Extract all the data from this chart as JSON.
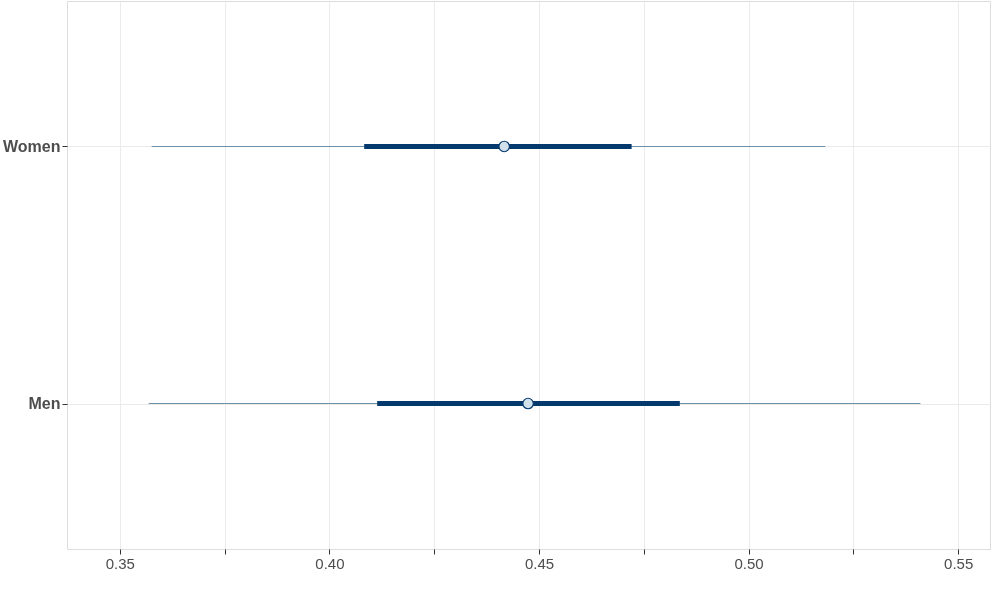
{
  "chart_data": {
    "type": "box",
    "orientation": "horizontal",
    "categories": [
      "Women",
      "Men"
    ],
    "series": [
      {
        "color": "#03396c",
        "boxes": [
          {
            "low": 0.3576,
            "q1": 0.4083,
            "median": 0.4417,
            "q3": 0.4721,
            "high": 0.5183
          },
          {
            "low": 0.3569,
            "q1": 0.4114,
            "median": 0.4474,
            "q3": 0.4836,
            "high": 0.541
          }
        ]
      }
    ],
    "xlim": [
      0.3374,
      0.5576
    ],
    "xticks": [
      {
        "value": 0.35,
        "label": "0.35"
      },
      {
        "value": 0.375,
        "label": null
      },
      {
        "value": 0.4,
        "label": "0.40"
      },
      {
        "value": 0.425,
        "label": null
      },
      {
        "value": 0.45,
        "label": "0.45"
      },
      {
        "value": 0.475,
        "label": null
      },
      {
        "value": 0.5,
        "label": "0.50"
      },
      {
        "value": 0.525,
        "label": null
      },
      {
        "value": 0.55,
        "label": "0.55"
      }
    ],
    "grid": true
  }
}
